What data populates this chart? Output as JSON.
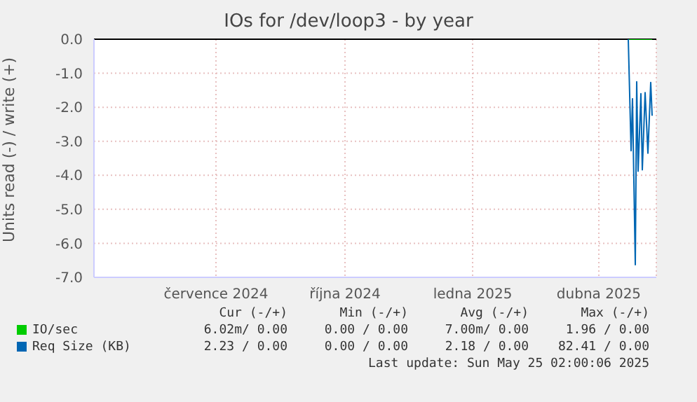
{
  "chart_data": {
    "type": "line",
    "title": "IOs for /dev/loop3 - by year",
    "ylabel": "Units read (-) / write (+)",
    "xlim": [
      "2024-04-19",
      "2025-05-25"
    ],
    "xticks": [
      {
        "value": "2024-07-15",
        "label": "července 2024"
      },
      {
        "value": "2024-10-15",
        "label": "října 2024"
      },
      {
        "value": "2025-01-14",
        "label": "ledna 2025"
      },
      {
        "value": "2025-04-14",
        "label": "dubna 2025"
      }
    ],
    "ylim": [
      -7,
      0
    ],
    "yticks": [
      {
        "value": -7,
        "label": "-7.0"
      },
      {
        "value": -6,
        "label": "-6.0"
      },
      {
        "value": -5,
        "label": "-5.0"
      },
      {
        "value": -4,
        "label": "-4.0"
      },
      {
        "value": -3,
        "label": "-3.0"
      },
      {
        "value": -2,
        "label": "-2.0"
      },
      {
        "value": -1,
        "label": "-1.0"
      },
      {
        "value": 0,
        "label": "0.0"
      }
    ],
    "grid": true,
    "legend": "bottom left",
    "series": [
      {
        "name": "IO/sec",
        "color": "#00cc00",
        "x": [
          "2025-05-05",
          "2025-05-10",
          "2025-05-15",
          "2025-05-22"
        ],
        "values": [
          0,
          0,
          0,
          0
        ]
      },
      {
        "name": "Req Size (KB)",
        "color": "#0066b3",
        "x": [
          "2025-05-05",
          "2025-05-07",
          "2025-05-08",
          "2025-05-10",
          "2025-05-11",
          "2025-05-12",
          "2025-05-14",
          "2025-05-15",
          "2025-05-17",
          "2025-05-19",
          "2025-05-21",
          "2025-05-22"
        ],
        "values": [
          0,
          -3.28,
          -1.75,
          -6.63,
          -1.25,
          -3.88,
          -1.6,
          -3.84,
          -1.57,
          -3.35,
          -1.27,
          -2.25
        ]
      }
    ],
    "annotations": [
      "Cur (-/+)",
      "Min (-/+)",
      "Avg (-/+)",
      "Max (-/+)",
      "6.02m/ 0.00",
      "0.00 / 0.00",
      "7.00m/ 0.00",
      "1.96 / 0.00",
      "2.23 / 0.00",
      "0.00 / 0.00",
      "2.18 / 0.00",
      "82.41 / 0.00",
      "Last update: Sun May 25 02:00:06 2025"
    ]
  }
}
